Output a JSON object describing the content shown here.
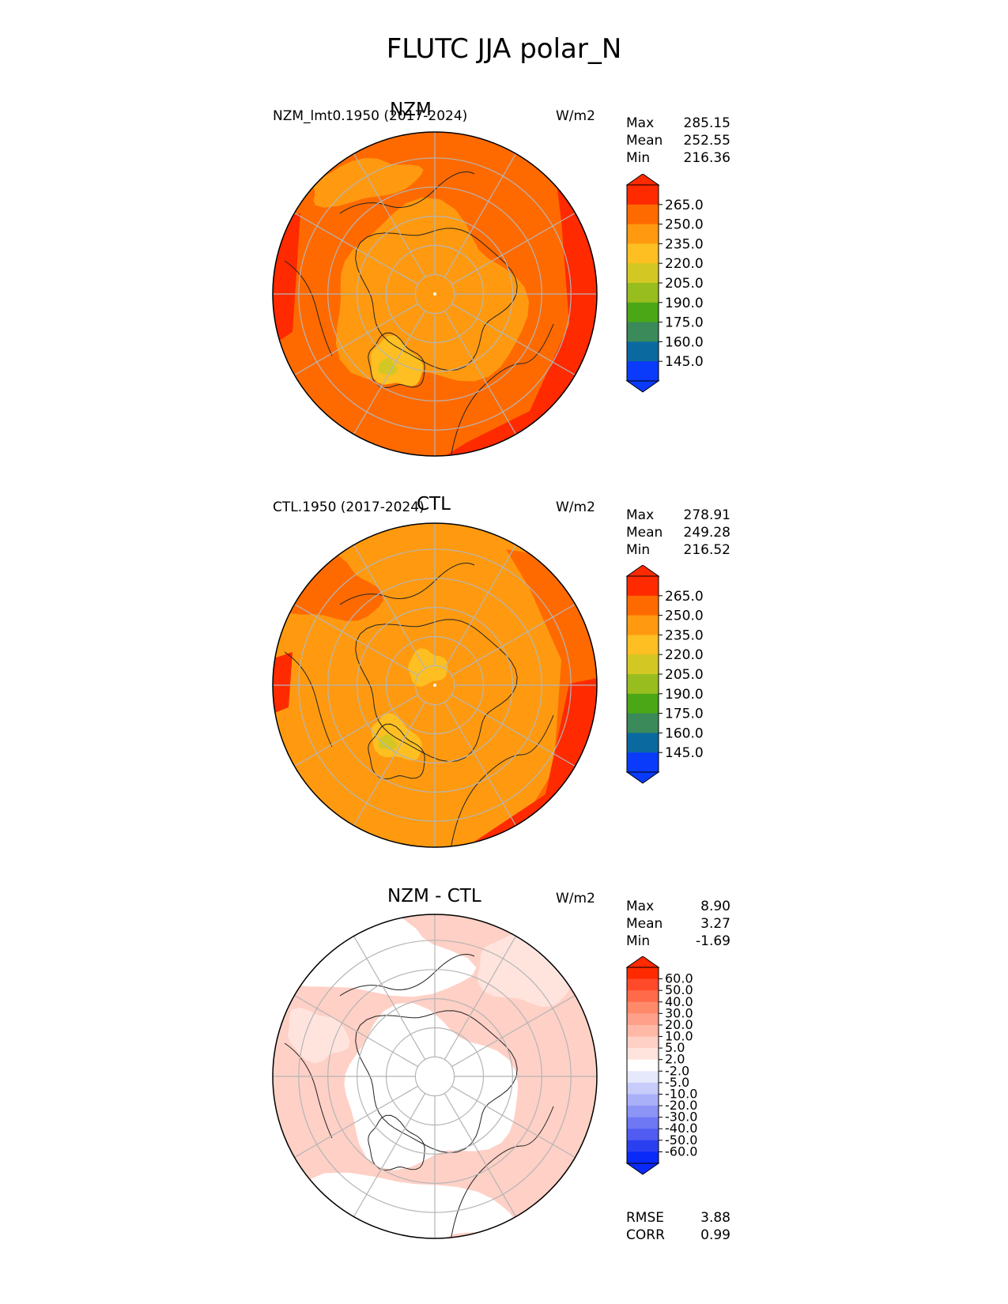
{
  "title": "FLUTC JJA polar_N",
  "panels": [
    {
      "title": "NZM",
      "case_label": "NZM_lmt0.1950 (2017-2024)",
      "units": "W/m2",
      "stats": [
        {
          "label": "Max",
          "value": "285.15"
        },
        {
          "label": "Mean",
          "value": "252.55"
        },
        {
          "label": "Min",
          "value": "216.36"
        }
      ],
      "colorbar": {
        "labels": [
          "265.0",
          "250.0",
          "235.0",
          "220.0",
          "205.0",
          "190.0",
          "175.0",
          "160.0",
          "145.0"
        ],
        "colors": [
          "#ff2a00",
          "#ff6a00",
          "#ff9a10",
          "#fdbf22",
          "#d3c823",
          "#98bd1f",
          "#4ba716",
          "#3a8a5a",
          "#0a6aa0",
          "#0a3afa"
        ]
      }
    },
    {
      "title": "CTL",
      "case_label": "CTL.1950 (2017-2024)",
      "units": "W/m2",
      "stats": [
        {
          "label": "Max",
          "value": "278.91"
        },
        {
          "label": "Mean",
          "value": "249.28"
        },
        {
          "label": "Min",
          "value": "216.52"
        }
      ],
      "colorbar": {
        "labels": [
          "265.0",
          "250.0",
          "235.0",
          "220.0",
          "205.0",
          "190.0",
          "175.0",
          "160.0",
          "145.0"
        ],
        "colors": [
          "#ff2a00",
          "#ff6a00",
          "#ff9a10",
          "#fdbf22",
          "#d3c823",
          "#98bd1f",
          "#4ba716",
          "#3a8a5a",
          "#0a6aa0",
          "#0a3afa"
        ]
      }
    },
    {
      "title": "NZM - CTL",
      "case_label": "",
      "units": "W/m2",
      "stats": [
        {
          "label": "Max",
          "value": "8.90"
        },
        {
          "label": "Mean",
          "value": "3.27"
        },
        {
          "label": "Min",
          "value": "-1.69"
        }
      ],
      "extra_stats": [
        {
          "label": "RMSE",
          "value": "3.88"
        },
        {
          "label": "CORR",
          "value": "0.99"
        }
      ],
      "colorbar": {
        "labels": [
          "60.0",
          "50.0",
          "40.0",
          "30.0",
          "20.0",
          "10.0",
          "5.0",
          "2.0",
          "-2.0",
          "-5.0",
          "-10.0",
          "-20.0",
          "-30.0",
          "-40.0",
          "-50.0",
          "-60.0"
        ],
        "colors": [
          "#ff2a00",
          "#ff4a2a",
          "#ff6a4a",
          "#ff8a6a",
          "#ffa08a",
          "#ffb8a6",
          "#ffd0c6",
          "#ffe4de",
          "#ffffff",
          "#e6e8fc",
          "#c8ccfa",
          "#aab0f8",
          "#8c94f6",
          "#6e78f4",
          "#505cf2",
          "#2a40f0",
          "#0a2afa"
        ]
      }
    }
  ]
}
